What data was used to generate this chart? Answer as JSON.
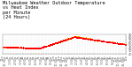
{
  "title": "Milwaukee Weather Outdoor Temperature\nvs Heat Index\nper Minute\n(24 Hours)",
  "title_fontsize": 3.8,
  "bg_color": "#ffffff",
  "plot_bg_color": "#ffffff",
  "grid_color": "#aaaaaa",
  "red_color": "#ff0000",
  "orange_color": "#ffa500",
  "tick_fontsize": 2.5,
  "ylim": [
    20,
    90
  ],
  "yticks": [
    20,
    30,
    40,
    50,
    60,
    70,
    80,
    90
  ],
  "marker_size": 0.5,
  "seed": 42,
  "num_points": 1440
}
